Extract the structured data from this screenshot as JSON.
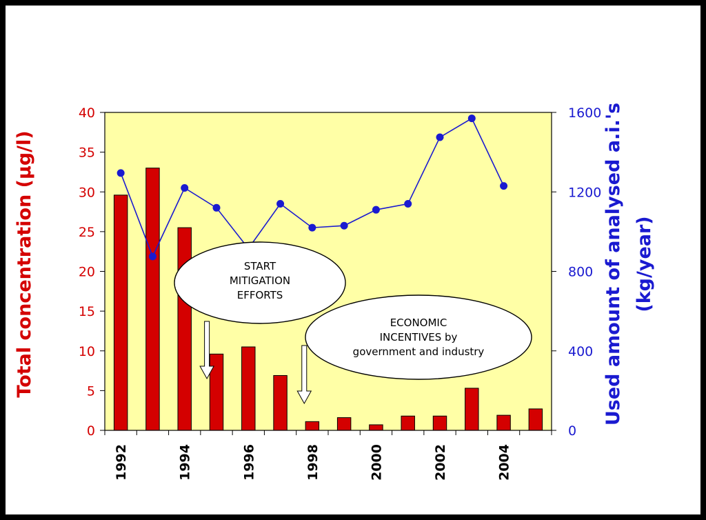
{
  "chart_data": {
    "type": "bar",
    "title": "",
    "x": [
      1992,
      1993,
      1994,
      1995,
      1996,
      1997,
      1998,
      1999,
      2000,
      2001,
      2002,
      2003,
      2004,
      2005
    ],
    "x_tick_labels": [
      "1992",
      "1994",
      "1996",
      "1998",
      "2000",
      "2002",
      "2004"
    ],
    "ylabel": "Total concentration (µg/l)",
    "y2label_line1": "Used amount of analysed a.i.'s",
    "y2label_line2": "(kg/year)",
    "ylim": [
      0,
      40
    ],
    "y2lim": [
      0,
      1600
    ],
    "y_ticks": [
      0,
      5,
      10,
      15,
      20,
      25,
      30,
      35,
      40
    ],
    "y2_ticks": [
      0,
      400,
      800,
      1200,
      1600
    ],
    "series": [
      {
        "type": "bar",
        "axis": "left",
        "color": "#d40000",
        "values": [
          29.6,
          33.0,
          25.5,
          9.6,
          10.5,
          6.9,
          1.1,
          1.6,
          0.7,
          1.8,
          1.8,
          5.3,
          1.9,
          2.7
        ]
      },
      {
        "type": "line",
        "axis": "right",
        "color": "#1a1ad0",
        "x": [
          1992,
          1993,
          1994,
          1995,
          1996,
          1997,
          1998,
          1999,
          2000,
          2001,
          2002,
          2003,
          2004
        ],
        "values": [
          1295,
          875,
          1220,
          1120,
          915,
          1140,
          1020,
          1030,
          1110,
          1140,
          1475,
          1570,
          1230
        ]
      }
    ],
    "annotations": [
      {
        "lines": [
          "START",
          "MITIGATION",
          "EFFORTS"
        ],
        "arrow_x": 1994.7
      },
      {
        "lines": [
          "ECONOMIC",
          "INCENTIVES by",
          "government and industry"
        ],
        "arrow_x": 1997.75
      }
    ],
    "plot_background": "#ffffa6",
    "grid": false
  }
}
